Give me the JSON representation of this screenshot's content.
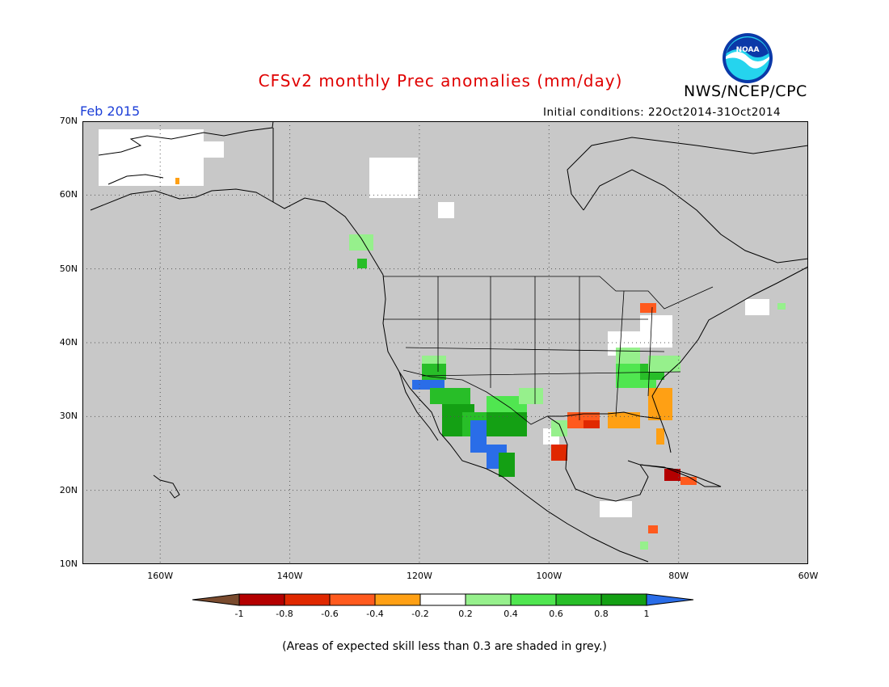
{
  "title": "CFSv2 monthly Prec anomalies (mm/day)",
  "agency": "NWS/NCEP/CPC",
  "logo": {
    "text": "NOAA",
    "colors": {
      "ring": "#0b39a8",
      "sky": "#25d4ee",
      "bird": "#ffffff"
    }
  },
  "valid_month": "Feb 2015",
  "initial_conditions": "Initial conditions: 22Oct2014-31Oct2014",
  "footnote": "(Areas of expected skill less than 0.3 are shaded in grey.)",
  "map": {
    "lon_range": [
      -172,
      -60
    ],
    "lat_range": [
      10,
      70
    ],
    "lat_labels": [
      "10N",
      "20N",
      "30N",
      "40N",
      "50N",
      "60N",
      "70N"
    ],
    "lon_labels": [
      "160W",
      "140W",
      "120W",
      "100W",
      "80W",
      "60W"
    ],
    "grey_color": "#c8c8c8",
    "grid": "dotted"
  },
  "colorbar": {
    "labels": [
      "-1",
      "-0.8",
      "-0.6",
      "-0.4",
      "-0.2",
      "0.2",
      "0.4",
      "0.6",
      "0.8",
      "1"
    ],
    "colors": [
      "#7a4b2e",
      "#b40000",
      "#e02800",
      "#ff5a1e",
      "#ffa014",
      "#ffffff",
      "#96f08c",
      "#50e650",
      "#28be28",
      "#14a014",
      "#2a6de8"
    ]
  }
}
